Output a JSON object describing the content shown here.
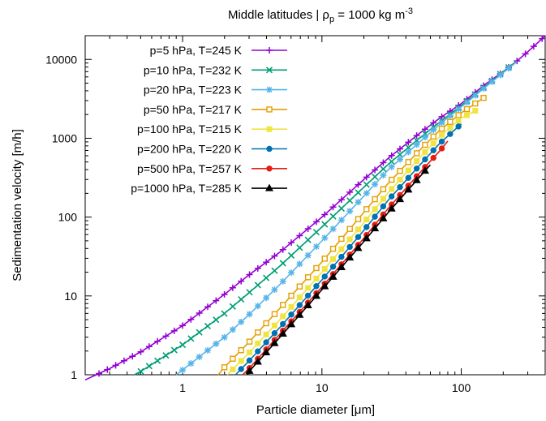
{
  "chart_data": {
    "type": "line",
    "title": {
      "prefix": "Middle latitudes | ρ",
      "sub": "p",
      "middle": " = 1000 kg m",
      "sup": "-3"
    },
    "xlabel": {
      "prefix": "Particle diameter [",
      "mu": "μ",
      "suffix": "m]"
    },
    "ylabel": "Sedimentation velocity [m/h]",
    "xscale": "log",
    "yscale": "log",
    "xlim": [
      0.2,
      400
    ],
    "ylim": [
      1,
      20000
    ],
    "x_ticks": [
      {
        "value": 1,
        "label": "1"
      },
      {
        "value": 10,
        "label": "10"
      },
      {
        "value": 100,
        "label": "100"
      }
    ],
    "y_ticks": [
      {
        "value": 1,
        "label": "1"
      },
      {
        "value": 10,
        "label": "10"
      },
      {
        "value": 100,
        "label": "100"
      },
      {
        "value": 1000,
        "label": "1000"
      },
      {
        "value": 10000,
        "label": "10000"
      }
    ],
    "grid": false,
    "legend_position": "top-left",
    "series": [
      {
        "name": "p=5 hPa, T=245 K",
        "color": "#9400d3",
        "marker": "plus",
        "x": [
          0.2,
          0.3,
          0.5,
          1,
          2,
          3,
          5,
          10,
          20,
          30,
          50,
          70,
          100,
          150,
          200,
          250,
          300,
          350,
          400
        ],
        "y": [
          0.86,
          1.2,
          1.95,
          4.2,
          10.5,
          18.5,
          36,
          100,
          300,
          560,
          1150,
          1800,
          2750,
          4900,
          7000,
          9500,
          12500,
          16000,
          20000
        ]
      },
      {
        "name": "p=10 hPa, T=232 K",
        "color": "#009e73",
        "marker": "cross",
        "x": [
          0.45,
          0.5,
          1,
          2,
          3,
          5,
          10,
          20,
          30,
          50,
          70,
          100,
          150,
          200,
          250
        ],
        "y": [
          1.0,
          1.1,
          2.4,
          6.0,
          11.0,
          24,
          75,
          240,
          470,
          1000,
          1600,
          2600,
          4600,
          7000,
          9500
        ]
      },
      {
        "name": "p=20 hPa, T=223 K",
        "color": "#56b4e9",
        "marker": "star",
        "x": [
          0.9,
          1,
          2,
          3,
          5,
          10,
          20,
          30,
          50,
          70,
          100,
          150,
          200,
          250
        ],
        "y": [
          1.0,
          1.15,
          3.0,
          5.8,
          14,
          50,
          185,
          400,
          890,
          1500,
          2500,
          4500,
          6800,
          9300
        ]
      },
      {
        "name": "p=50 hPa, T=217 K",
        "color": "#e69f00",
        "marker": "box",
        "x": [
          1.8,
          2,
          3,
          5,
          10,
          20,
          30,
          50,
          70,
          100,
          150
        ],
        "y": [
          1.0,
          1.25,
          2.6,
          7.0,
          27,
          115,
          270,
          700,
          1260,
          2100,
          3400
        ]
      },
      {
        "name": "p=100 hPa, T=215 K",
        "color": "#f0e442",
        "marker": "filled-box",
        "x": [
          2.1,
          3,
          5,
          10,
          20,
          30,
          50,
          70,
          100,
          130
        ],
        "y": [
          1.0,
          1.9,
          5.0,
          20,
          85,
          205,
          560,
          1050,
          1800,
          2300
        ]
      },
      {
        "name": "p=200 hPa, T=220 K",
        "color": "#0072b2",
        "marker": "circle",
        "x": [
          2.4,
          3,
          5,
          10,
          20,
          30,
          50,
          70,
          100
        ],
        "y": [
          1.0,
          1.5,
          4.0,
          16,
          68,
          165,
          450,
          860,
          1520
        ]
      },
      {
        "name": "p=500 hPa, T=257 K",
        "color": "#e51e10",
        "marker": "circle",
        "x": [
          2.7,
          3,
          5,
          10,
          20,
          30,
          50,
          70,
          80
        ],
        "y": [
          1.0,
          1.2,
          3.3,
          13,
          54,
          130,
          360,
          690,
          920
        ]
      },
      {
        "name": "p=1000 hPa, T=285 K",
        "color": "#000000",
        "marker": "triangle",
        "x": [
          2.9,
          3,
          5,
          10,
          20,
          30,
          50,
          60
        ],
        "y": [
          1.0,
          1.1,
          3.0,
          12,
          49,
          115,
          320,
          460
        ]
      }
    ]
  }
}
